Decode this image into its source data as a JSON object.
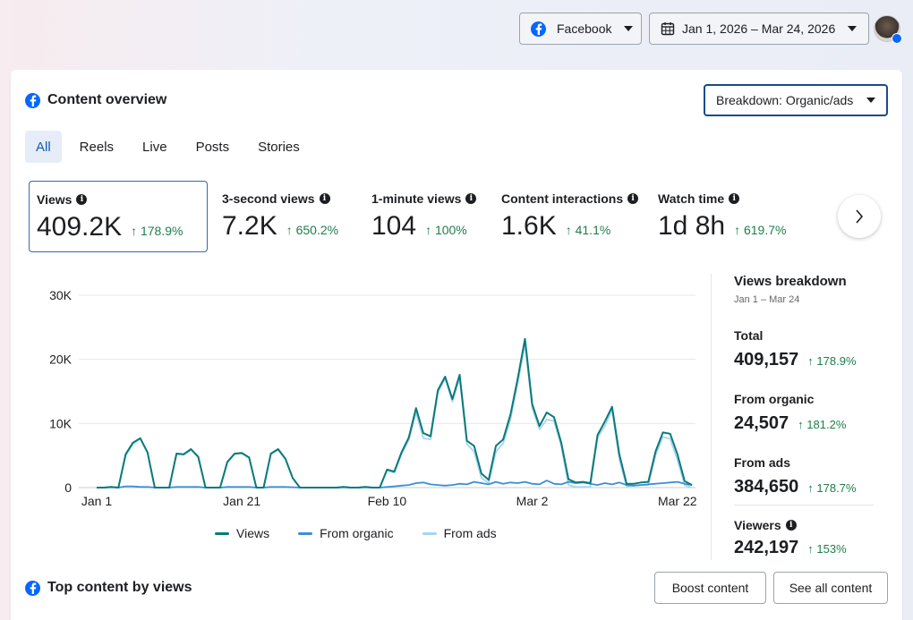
{
  "topbar": {
    "platform_label": "Facebook",
    "date_range": "Jan 1, 2026 – Mar 24, 2026"
  },
  "overview": {
    "title": "Content overview",
    "breakdown_label": "Breakdown: Organic/ads",
    "tabs": [
      {
        "label": "All",
        "active": true
      },
      {
        "label": "Reels",
        "active": false
      },
      {
        "label": "Live",
        "active": false
      },
      {
        "label": "Posts",
        "active": false
      },
      {
        "label": "Stories",
        "active": false
      }
    ],
    "metrics": [
      {
        "label": "Views",
        "value": "409.2K",
        "delta": "↑ 178.9%",
        "selected": true
      },
      {
        "label": "3-second views",
        "value": "7.2K",
        "delta": "↑ 650.2%",
        "selected": false
      },
      {
        "label": "1-minute views",
        "value": "104",
        "delta": "↑ 100%",
        "selected": false
      },
      {
        "label": "Content interactions",
        "value": "1.6K",
        "delta": "↑ 41.1%",
        "selected": false
      },
      {
        "label": "Watch time",
        "value": "1d 8h",
        "delta": "↑ 619.7%",
        "selected": false
      }
    ]
  },
  "chart_data": {
    "type": "line",
    "title": "",
    "xlabel": "",
    "ylabel": "",
    "ylim": [
      0,
      30000
    ],
    "y_ticks": [
      0,
      10000,
      20000,
      30000
    ],
    "y_tick_labels": [
      "0",
      "10K",
      "20K",
      "30K"
    ],
    "x_tick_labels": [
      {
        "label": "Jan 1",
        "day": 0
      },
      {
        "label": "Jan 21",
        "day": 20
      },
      {
        "label": "Feb 10",
        "day": 40
      },
      {
        "label": "Mar 2",
        "day": 60
      },
      {
        "label": "Mar 22",
        "day": 80
      }
    ],
    "x_range": [
      0,
      82
    ],
    "series": [
      {
        "name": "Views",
        "color": "#0b7a7a",
        "values": [
          0,
          0,
          100,
          0,
          5200,
          7000,
          7700,
          5500,
          0,
          0,
          0,
          5300,
          5200,
          6000,
          4800,
          0,
          0,
          0,
          4000,
          5300,
          5400,
          4700,
          0,
          0,
          5300,
          6000,
          4500,
          1500,
          0,
          0,
          0,
          0,
          0,
          0,
          100,
          0,
          0,
          100,
          0,
          0,
          2800,
          2500,
          5500,
          7800,
          12400,
          8500,
          8000,
          15200,
          17300,
          13800,
          17600,
          7300,
          6500,
          2200,
          1200,
          6500,
          7500,
          11400,
          17000,
          23200,
          13000,
          9600,
          11700,
          11000,
          7000,
          1300,
          800,
          900,
          700,
          8200,
          10300,
          12600,
          5200,
          600,
          600,
          800,
          900,
          5700,
          8600,
          8400,
          5200,
          1000,
          400
        ]
      },
      {
        "name": "From organic",
        "color": "#3b8fd6",
        "values": [
          0,
          0,
          100,
          0,
          200,
          200,
          100,
          100,
          0,
          0,
          0,
          100,
          100,
          100,
          100,
          0,
          0,
          0,
          100,
          100,
          100,
          100,
          0,
          0,
          100,
          100,
          100,
          50,
          0,
          0,
          0,
          0,
          0,
          0,
          100,
          0,
          0,
          100,
          0,
          0,
          100,
          200,
          300,
          400,
          700,
          800,
          500,
          400,
          300,
          400,
          600,
          500,
          900,
          700,
          500,
          900,
          600,
          800,
          700,
          900,
          600,
          500,
          1100,
          600,
          500,
          900,
          700,
          800,
          600,
          400,
          700,
          500,
          800,
          400,
          300,
          400,
          500,
          600,
          700,
          800,
          900,
          600,
          400
        ]
      },
      {
        "name": "From ads",
        "color": "#a7d4f2",
        "values": [
          0,
          0,
          0,
          0,
          5000,
          6800,
          7600,
          5400,
          0,
          0,
          0,
          5200,
          5100,
          5900,
          4700,
          0,
          0,
          0,
          3900,
          5200,
          5300,
          4600,
          0,
          0,
          5200,
          5900,
          4400,
          1450,
          0,
          0,
          0,
          0,
          0,
          0,
          0,
          0,
          0,
          0,
          0,
          0,
          2700,
          2300,
          5200,
          7400,
          11700,
          7700,
          7500,
          14800,
          17000,
          13400,
          17000,
          6800,
          5600,
          1500,
          700,
          5600,
          6900,
          10600,
          16300,
          22300,
          12400,
          9100,
          10600,
          10400,
          6500,
          400,
          100,
          100,
          100,
          7800,
          9600,
          12100,
          4400,
          200,
          300,
          400,
          400,
          5100,
          7900,
          7600,
          4300,
          400,
          0
        ]
      }
    ]
  },
  "breakdown": {
    "title": "Views breakdown",
    "subtitle": "Jan 1 – Mar 24",
    "items": [
      {
        "label": "Total",
        "value": "409,157",
        "delta": "↑ 178.9%"
      },
      {
        "label": "From organic",
        "value": "24,507",
        "delta": "↑ 181.2%"
      },
      {
        "label": "From ads",
        "value": "384,650",
        "delta": "↑ 178.7%"
      },
      {
        "label": "Viewers",
        "value": "242,197",
        "delta": "↑ 153%"
      }
    ]
  },
  "top_content": {
    "title": "Top content by views",
    "boost_label": "Boost content",
    "see_all_label": "See all content"
  }
}
